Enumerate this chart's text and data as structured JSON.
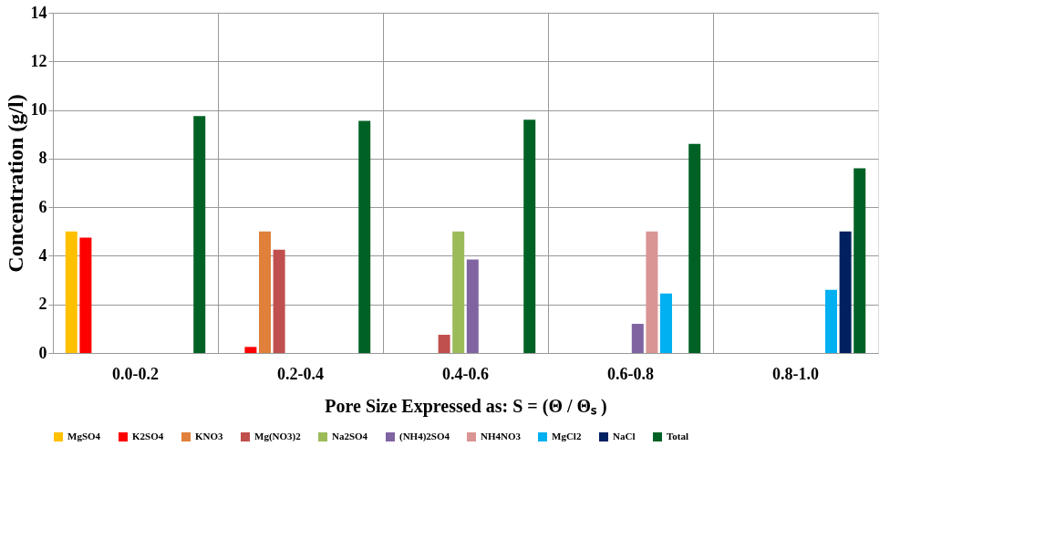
{
  "chart_data": {
    "type": "bar",
    "xlabel": "Pore Size Expressed as: S = (Θ / Θₛ )",
    "ylabel": "Concentration (g/l)",
    "categories": [
      "0.0-0.2",
      "0.2-0.4",
      "0.4-0.6",
      "0.6-0.8",
      "0.8-1.0"
    ],
    "series": [
      {
        "name": "MgSO4",
        "color": "#ffc000",
        "values": [
          5.0,
          null,
          null,
          null,
          null
        ]
      },
      {
        "name": "K2SO4",
        "color": "#ff0000",
        "values": [
          4.75,
          0.25,
          null,
          null,
          null
        ]
      },
      {
        "name": "KNO3",
        "color": "#e0803a",
        "values": [
          null,
          5.0,
          null,
          null,
          null
        ]
      },
      {
        "name": "Mg(NO3)2",
        "color": "#c0504d",
        "values": [
          null,
          4.25,
          0.75,
          null,
          null
        ]
      },
      {
        "name": "Na2SO4",
        "color": "#9bbb59",
        "values": [
          null,
          null,
          5.0,
          null,
          null
        ]
      },
      {
        "name": "(NH4)2SO4",
        "color": "#8064a2",
        "values": [
          null,
          null,
          3.85,
          1.2,
          null
        ]
      },
      {
        "name": "NH4NO3",
        "color": "#d99594",
        "values": [
          null,
          null,
          null,
          5.0,
          null
        ]
      },
      {
        "name": "MgCl2",
        "color": "#00b0f0",
        "values": [
          null,
          null,
          null,
          2.45,
          2.6
        ]
      },
      {
        "name": "NaCl",
        "color": "#002060",
        "values": [
          null,
          null,
          null,
          null,
          5.0
        ]
      },
      {
        "name": "Total",
        "color": "#006125",
        "values": [
          9.75,
          9.55,
          9.6,
          8.6,
          7.6
        ]
      }
    ],
    "ylim": [
      0,
      14
    ],
    "yticks": [
      0,
      2,
      4,
      6,
      8,
      10,
      12,
      14
    ],
    "grid": true,
    "legend": "bottom"
  }
}
